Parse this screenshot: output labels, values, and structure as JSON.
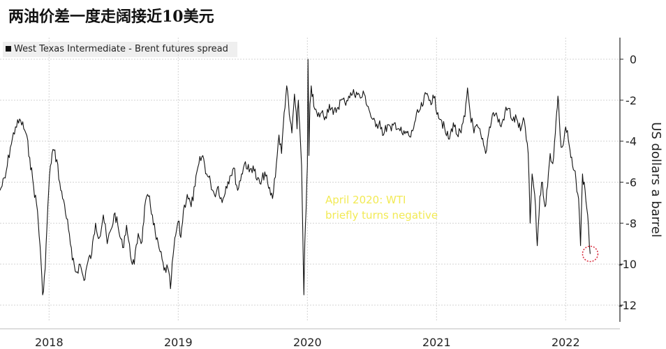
{
  "title": "两油价差一度走阔接近10美元",
  "chart_data": {
    "type": "line",
    "legend": [
      {
        "label": "West Texas Intermediate - Brent futures spread",
        "color": "#111111"
      }
    ],
    "ylabel": "US dollars a barrel",
    "ylim": [
      -12.8,
      1.2
    ],
    "yticks": [
      0,
      -2,
      -4,
      -6,
      -8,
      -10,
      -12
    ],
    "xlim": [
      2017.62,
      2022.42
    ],
    "xticks": [
      {
        "label": "2018",
        "value": 2018.0
      },
      {
        "label": "2019",
        "value": 2019.0
      },
      {
        "label": "2020",
        "value": 2020.0
      },
      {
        "label": "2021",
        "value": 2021.0
      },
      {
        "label": "2022",
        "value": 2022.0
      }
    ],
    "series": [
      {
        "name": "West Texas Intermediate - Brent futures spread",
        "color": "#111111",
        "points": [
          [
            2017.62,
            -6.4
          ],
          [
            2017.66,
            -5.8
          ],
          [
            2017.7,
            -4.3
          ],
          [
            2017.74,
            -3.3
          ],
          [
            2017.78,
            -3.0
          ],
          [
            2017.82,
            -3.6
          ],
          [
            2017.85,
            -4.8
          ],
          [
            2017.88,
            -6.2
          ],
          [
            2017.91,
            -7.4
          ],
          [
            2017.93,
            -9.1
          ],
          [
            2017.95,
            -11.5
          ],
          [
            2017.97,
            -10.2
          ],
          [
            2017.99,
            -7.2
          ],
          [
            2018.01,
            -5.2
          ],
          [
            2018.03,
            -4.4
          ],
          [
            2018.06,
            -4.9
          ],
          [
            2018.09,
            -6.4
          ],
          [
            2018.12,
            -7.1
          ],
          [
            2018.15,
            -8.3
          ],
          [
            2018.18,
            -9.8
          ],
          [
            2018.21,
            -10.4
          ],
          [
            2018.24,
            -10.0
          ],
          [
            2018.27,
            -10.8
          ],
          [
            2018.3,
            -9.9
          ],
          [
            2018.33,
            -9.5
          ],
          [
            2018.36,
            -8.0
          ],
          [
            2018.39,
            -8.7
          ],
          [
            2018.42,
            -7.6
          ],
          [
            2018.45,
            -9.0
          ],
          [
            2018.48,
            -8.3
          ],
          [
            2018.51,
            -7.5
          ],
          [
            2018.54,
            -8.4
          ],
          [
            2018.57,
            -9.2
          ],
          [
            2018.6,
            -8.1
          ],
          [
            2018.63,
            -9.6
          ],
          [
            2018.66,
            -10.0
          ],
          [
            2018.69,
            -8.5
          ],
          [
            2018.72,
            -8.9
          ],
          [
            2018.74,
            -7.2
          ],
          [
            2018.77,
            -6.7
          ],
          [
            2018.8,
            -7.6
          ],
          [
            2018.83,
            -8.8
          ],
          [
            2018.86,
            -9.4
          ],
          [
            2018.89,
            -10.3
          ],
          [
            2018.92,
            -10.2
          ],
          [
            2018.94,
            -11.2
          ],
          [
            2018.96,
            -9.6
          ],
          [
            2018.98,
            -8.6
          ],
          [
            2019.0,
            -7.9
          ],
          [
            2019.02,
            -8.7
          ],
          [
            2019.04,
            -7.4
          ],
          [
            2019.07,
            -6.6
          ],
          [
            2019.1,
            -7.2
          ],
          [
            2019.13,
            -6.2
          ],
          [
            2019.16,
            -5.1
          ],
          [
            2019.19,
            -4.7
          ],
          [
            2019.22,
            -5.6
          ],
          [
            2019.25,
            -6.0
          ],
          [
            2019.28,
            -6.6
          ],
          [
            2019.31,
            -6.2
          ],
          [
            2019.34,
            -7.0
          ],
          [
            2019.37,
            -6.2
          ],
          [
            2019.4,
            -5.7
          ],
          [
            2019.43,
            -5.3
          ],
          [
            2019.46,
            -6.4
          ],
          [
            2019.49,
            -5.6
          ],
          [
            2019.52,
            -5.0
          ],
          [
            2019.55,
            -5.5
          ],
          [
            2019.58,
            -5.2
          ],
          [
            2019.61,
            -5.9
          ],
          [
            2019.64,
            -6.1
          ],
          [
            2019.67,
            -5.5
          ],
          [
            2019.7,
            -6.3
          ],
          [
            2019.73,
            -6.8
          ],
          [
            2019.76,
            -5.1
          ],
          [
            2019.78,
            -3.7
          ],
          [
            2019.8,
            -4.6
          ],
          [
            2019.82,
            -2.6
          ],
          [
            2019.84,
            -1.3
          ],
          [
            2019.86,
            -2.7
          ],
          [
            2019.88,
            -3.6
          ],
          [
            2019.9,
            -1.7
          ],
          [
            2019.92,
            -3.4
          ],
          [
            2019.93,
            -2.0
          ],
          [
            2019.94,
            -3.2
          ],
          [
            2019.955,
            -5.2
          ],
          [
            2019.965,
            -8.6
          ],
          [
            2019.973,
            -11.5
          ],
          [
            2019.98,
            -9.0
          ],
          [
            2019.99,
            -7.3
          ],
          [
            2020.0,
            -5.2
          ],
          [
            2020.005,
            0.0
          ],
          [
            2020.012,
            -4.7
          ],
          [
            2020.02,
            -2.2
          ],
          [
            2020.03,
            -1.3
          ],
          [
            2020.05,
            -2.3
          ],
          [
            2020.08,
            -2.8
          ],
          [
            2020.11,
            -2.6
          ],
          [
            2020.14,
            -2.8
          ],
          [
            2020.17,
            -2.2
          ],
          [
            2020.2,
            -2.7
          ],
          [
            2020.23,
            -2.4
          ],
          [
            2020.26,
            -2.0
          ],
          [
            2020.29,
            -2.1
          ],
          [
            2020.32,
            -1.8
          ],
          [
            2020.35,
            -1.7
          ],
          [
            2020.38,
            -1.6
          ],
          [
            2020.41,
            -1.9
          ],
          [
            2020.44,
            -1.7
          ],
          [
            2020.47,
            -2.3
          ],
          [
            2020.5,
            -2.9
          ],
          [
            2020.53,
            -3.3
          ],
          [
            2020.56,
            -3.0
          ],
          [
            2020.59,
            -3.7
          ],
          [
            2020.62,
            -3.2
          ],
          [
            2020.65,
            -3.5
          ],
          [
            2020.68,
            -3.1
          ],
          [
            2020.71,
            -3.4
          ],
          [
            2020.74,
            -3.7
          ],
          [
            2020.77,
            -3.6
          ],
          [
            2020.8,
            -3.8
          ],
          [
            2020.83,
            -3.1
          ],
          [
            2020.86,
            -2.6
          ],
          [
            2020.89,
            -2.3
          ],
          [
            2020.92,
            -1.7
          ],
          [
            2020.95,
            -2.0
          ],
          [
            2020.98,
            -1.9
          ],
          [
            2021.01,
            -2.6
          ],
          [
            2021.04,
            -3.0
          ],
          [
            2021.07,
            -3.6
          ],
          [
            2021.1,
            -3.9
          ],
          [
            2021.13,
            -3.1
          ],
          [
            2021.16,
            -3.7
          ],
          [
            2021.19,
            -3.6
          ],
          [
            2021.22,
            -2.8
          ],
          [
            2021.24,
            -1.4
          ],
          [
            2021.26,
            -2.6
          ],
          [
            2021.29,
            -3.6
          ],
          [
            2021.32,
            -3.3
          ],
          [
            2021.35,
            -3.9
          ],
          [
            2021.38,
            -4.6
          ],
          [
            2021.41,
            -3.3
          ],
          [
            2021.44,
            -2.6
          ],
          [
            2021.47,
            -2.8
          ],
          [
            2021.5,
            -3.3
          ],
          [
            2021.53,
            -2.6
          ],
          [
            2021.56,
            -2.4
          ],
          [
            2021.59,
            -3.0
          ],
          [
            2021.62,
            -2.9
          ],
          [
            2021.65,
            -3.5
          ],
          [
            2021.68,
            -3.0
          ],
          [
            2021.71,
            -4.6
          ],
          [
            2021.725,
            -8.0
          ],
          [
            2021.74,
            -5.6
          ],
          [
            2021.76,
            -6.6
          ],
          [
            2021.78,
            -9.1
          ],
          [
            2021.8,
            -6.7
          ],
          [
            2021.82,
            -6.0
          ],
          [
            2021.84,
            -7.2
          ],
          [
            2021.86,
            -6.2
          ],
          [
            2021.88,
            -4.6
          ],
          [
            2021.9,
            -5.1
          ],
          [
            2021.92,
            -3.6
          ],
          [
            2021.93,
            -2.6
          ],
          [
            2021.94,
            -1.8
          ],
          [
            2021.95,
            -2.8
          ],
          [
            2021.965,
            -4.3
          ],
          [
            2021.98,
            -4.2
          ],
          [
            2022.0,
            -3.3
          ],
          [
            2022.02,
            -3.9
          ],
          [
            2022.04,
            -4.8
          ],
          [
            2022.06,
            -5.4
          ],
          [
            2022.08,
            -5.9
          ],
          [
            2022.1,
            -6.8
          ],
          [
            2022.115,
            -9.1
          ],
          [
            2022.13,
            -5.6
          ],
          [
            2022.15,
            -6.4
          ],
          [
            2022.17,
            -7.6
          ],
          [
            2022.19,
            -9.5
          ]
        ]
      }
    ],
    "highlight": {
      "x": 2022.19,
      "y": -9.5,
      "color": "#d8283a"
    },
    "annotation": {
      "lines": [
        "April 2020: WTI",
        "briefly turns negative"
      ],
      "color": "#f2ea55"
    }
  }
}
